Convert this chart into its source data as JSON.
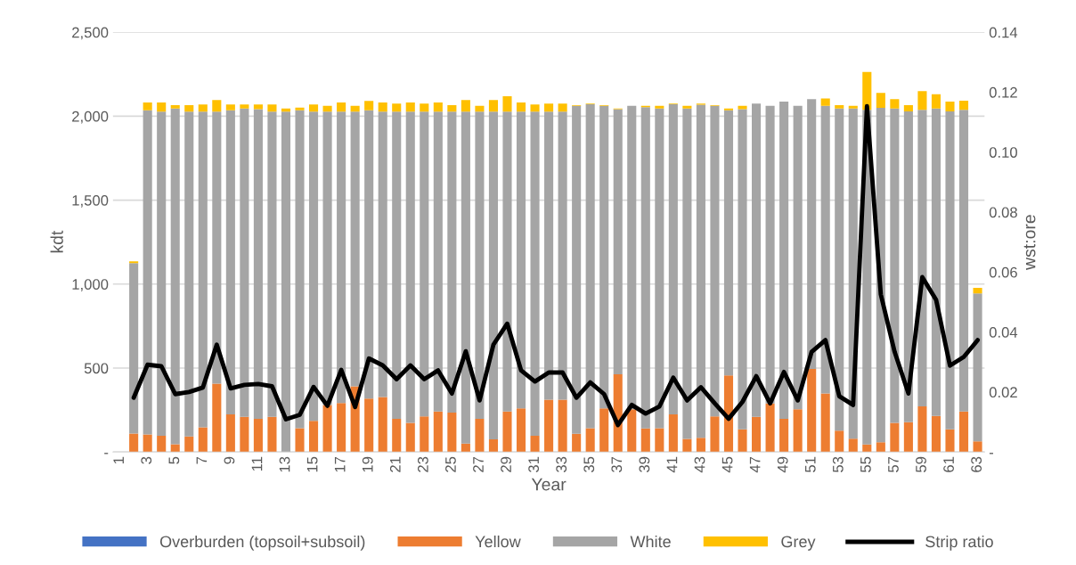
{
  "chart_data": {
    "type": "bar",
    "stacked": true,
    "xlabel": "Year",
    "ylabel": "kdt",
    "y2label": "wst:ore",
    "categories": [
      "1",
      null,
      "3",
      null,
      "5",
      null,
      "7",
      null,
      "9",
      null,
      "11",
      null,
      "13",
      null,
      "15",
      null,
      "17",
      null,
      "19",
      null,
      "21",
      null,
      "23",
      null,
      "25",
      null,
      "27",
      null,
      "29",
      null,
      "31",
      null,
      "33",
      null,
      "35",
      null,
      "37",
      null,
      "39",
      null,
      "41",
      null,
      "43",
      null,
      "45",
      null,
      "47",
      null,
      "49",
      null,
      "51",
      null,
      "53",
      null,
      "55",
      null,
      "57",
      null,
      "59",
      null,
      "61",
      null,
      "63"
    ],
    "ylim": [
      0,
      2500
    ],
    "yticks": [
      {
        "value": 0,
        "label": "-"
      },
      {
        "value": 500,
        "label": "500"
      },
      {
        "value": 1000,
        "label": "1,000"
      },
      {
        "value": 1500,
        "label": "1,500"
      },
      {
        "value": 2000,
        "label": "2,000"
      },
      {
        "value": 2500,
        "label": "2,500"
      }
    ],
    "y2lim": [
      0,
      0.14
    ],
    "y2ticks": [
      {
        "value": 0,
        "label": "-"
      },
      {
        "value": 0.02,
        "label": "0.02"
      },
      {
        "value": 0.04,
        "label": "0.04"
      },
      {
        "value": 0.06,
        "label": "0.06"
      },
      {
        "value": 0.08,
        "label": "0.08"
      },
      {
        "value": 0.1,
        "label": "0.10"
      },
      {
        "value": 0.12,
        "label": "0.12"
      },
      {
        "value": 0.14,
        "label": "0.14"
      }
    ],
    "grid": "y",
    "legend": "bottom",
    "series": [
      {
        "name": "Overburden (topsoil+subsoil)",
        "color": "#4472c4",
        "values": [
          null,
          0,
          0,
          0,
          0,
          0,
          0,
          0,
          0,
          0,
          0,
          0,
          0,
          0,
          0,
          0,
          0,
          0,
          0,
          0,
          0,
          0,
          0,
          0,
          0,
          0,
          0,
          0,
          0,
          0,
          0,
          0,
          0,
          0,
          0,
          0,
          0,
          0,
          0,
          0,
          0,
          0,
          0,
          0,
          0,
          0,
          0,
          0,
          0,
          0,
          0,
          0,
          0,
          0,
          0,
          0,
          0,
          0,
          0,
          0,
          0,
          0,
          0
        ]
      },
      {
        "name": "Yellow",
        "color": "#ed7d31",
        "values": [
          null,
          110,
          105,
          96,
          46,
          92,
          147,
          407,
          224,
          210,
          198,
          210,
          0,
          142,
          185,
          280,
          292,
          391,
          318,
          328,
          198,
          173,
          212,
          241,
          234,
          50,
          198,
          75,
          241,
          260,
          97,
          311,
          311,
          109,
          142,
          260,
          463,
          255,
          140,
          142,
          224,
          78,
          84,
          212,
          456,
          135,
          210,
          289,
          198,
          255,
          494,
          349,
          127,
          80,
          45,
          58,
          173,
          178,
          272,
          215,
          135,
          241,
          63
        ]
      },
      {
        "name": "White",
        "color": "#a5a5a5",
        "values": [
          null,
          1015,
          1930,
          1931,
          2000,
          1935,
          1880,
          1620,
          1811,
          1836,
          1843,
          1817,
          2027,
          1893,
          1842,
          1747,
          1735,
          1636,
          1717,
          1699,
          1829,
          1854,
          1815,
          1786,
          1793,
          1977,
          1829,
          1952,
          1786,
          1767,
          1930,
          1716,
          1716,
          1952,
          1929,
          1801,
          1578,
          1806,
          1913,
          1904,
          1847,
          1968,
          1984,
          1849,
          1579,
          1906,
          1865,
          1772,
          1889,
          1806,
          1607,
          1712,
          1918,
          1965,
          1993,
          1992,
          1872,
          1851,
          1766,
          1830,
          1894,
          1797,
          881
        ]
      },
      {
        "name": "Grey",
        "color": "#ffc000",
        "values": [
          null,
          10,
          47,
          55,
          20,
          39,
          43,
          69,
          35,
          24,
          29,
          43,
          19,
          16,
          43,
          34,
          55,
          34,
          56,
          55,
          48,
          55,
          48,
          55,
          39,
          69,
          34,
          69,
          91,
          55,
          43,
          48,
          48,
          5,
          4,
          5,
          5,
          0,
          8,
          15,
          4,
          15,
          7,
          5,
          11,
          20,
          0,
          0,
          0,
          0,
          0,
          45,
          21,
          16,
          225,
          88,
          56,
          37,
          111,
          85,
          58,
          54,
          34
        ]
      },
      {
        "name": "Strip ratio",
        "color": "#000000",
        "type": "line",
        "axis": "y2",
        "values": [
          null,
          0.0181,
          0.0291,
          0.0286,
          0.0193,
          0.02,
          0.0215,
          0.0358,
          0.0212,
          0.0224,
          0.0227,
          0.0219,
          0.0109,
          0.0124,
          0.0217,
          0.0154,
          0.0274,
          0.015,
          0.0312,
          0.0289,
          0.0243,
          0.0289,
          0.0243,
          0.0272,
          0.0195,
          0.0336,
          0.0172,
          0.0358,
          0.0428,
          0.0272,
          0.0235,
          0.0265,
          0.0265,
          0.0181,
          0.0232,
          0.0193,
          0.009,
          0.0157,
          0.0128,
          0.0152,
          0.0248,
          0.0172,
          0.0216,
          0.0162,
          0.0111,
          0.0167,
          0.0253,
          0.0162,
          0.0267,
          0.0172,
          0.0334,
          0.0373,
          0.0186,
          0.0157,
          0.1153,
          0.0526,
          0.0334,
          0.0195,
          0.0583,
          0.0507,
          0.0288,
          0.0317,
          0.0373
        ]
      }
    ]
  }
}
